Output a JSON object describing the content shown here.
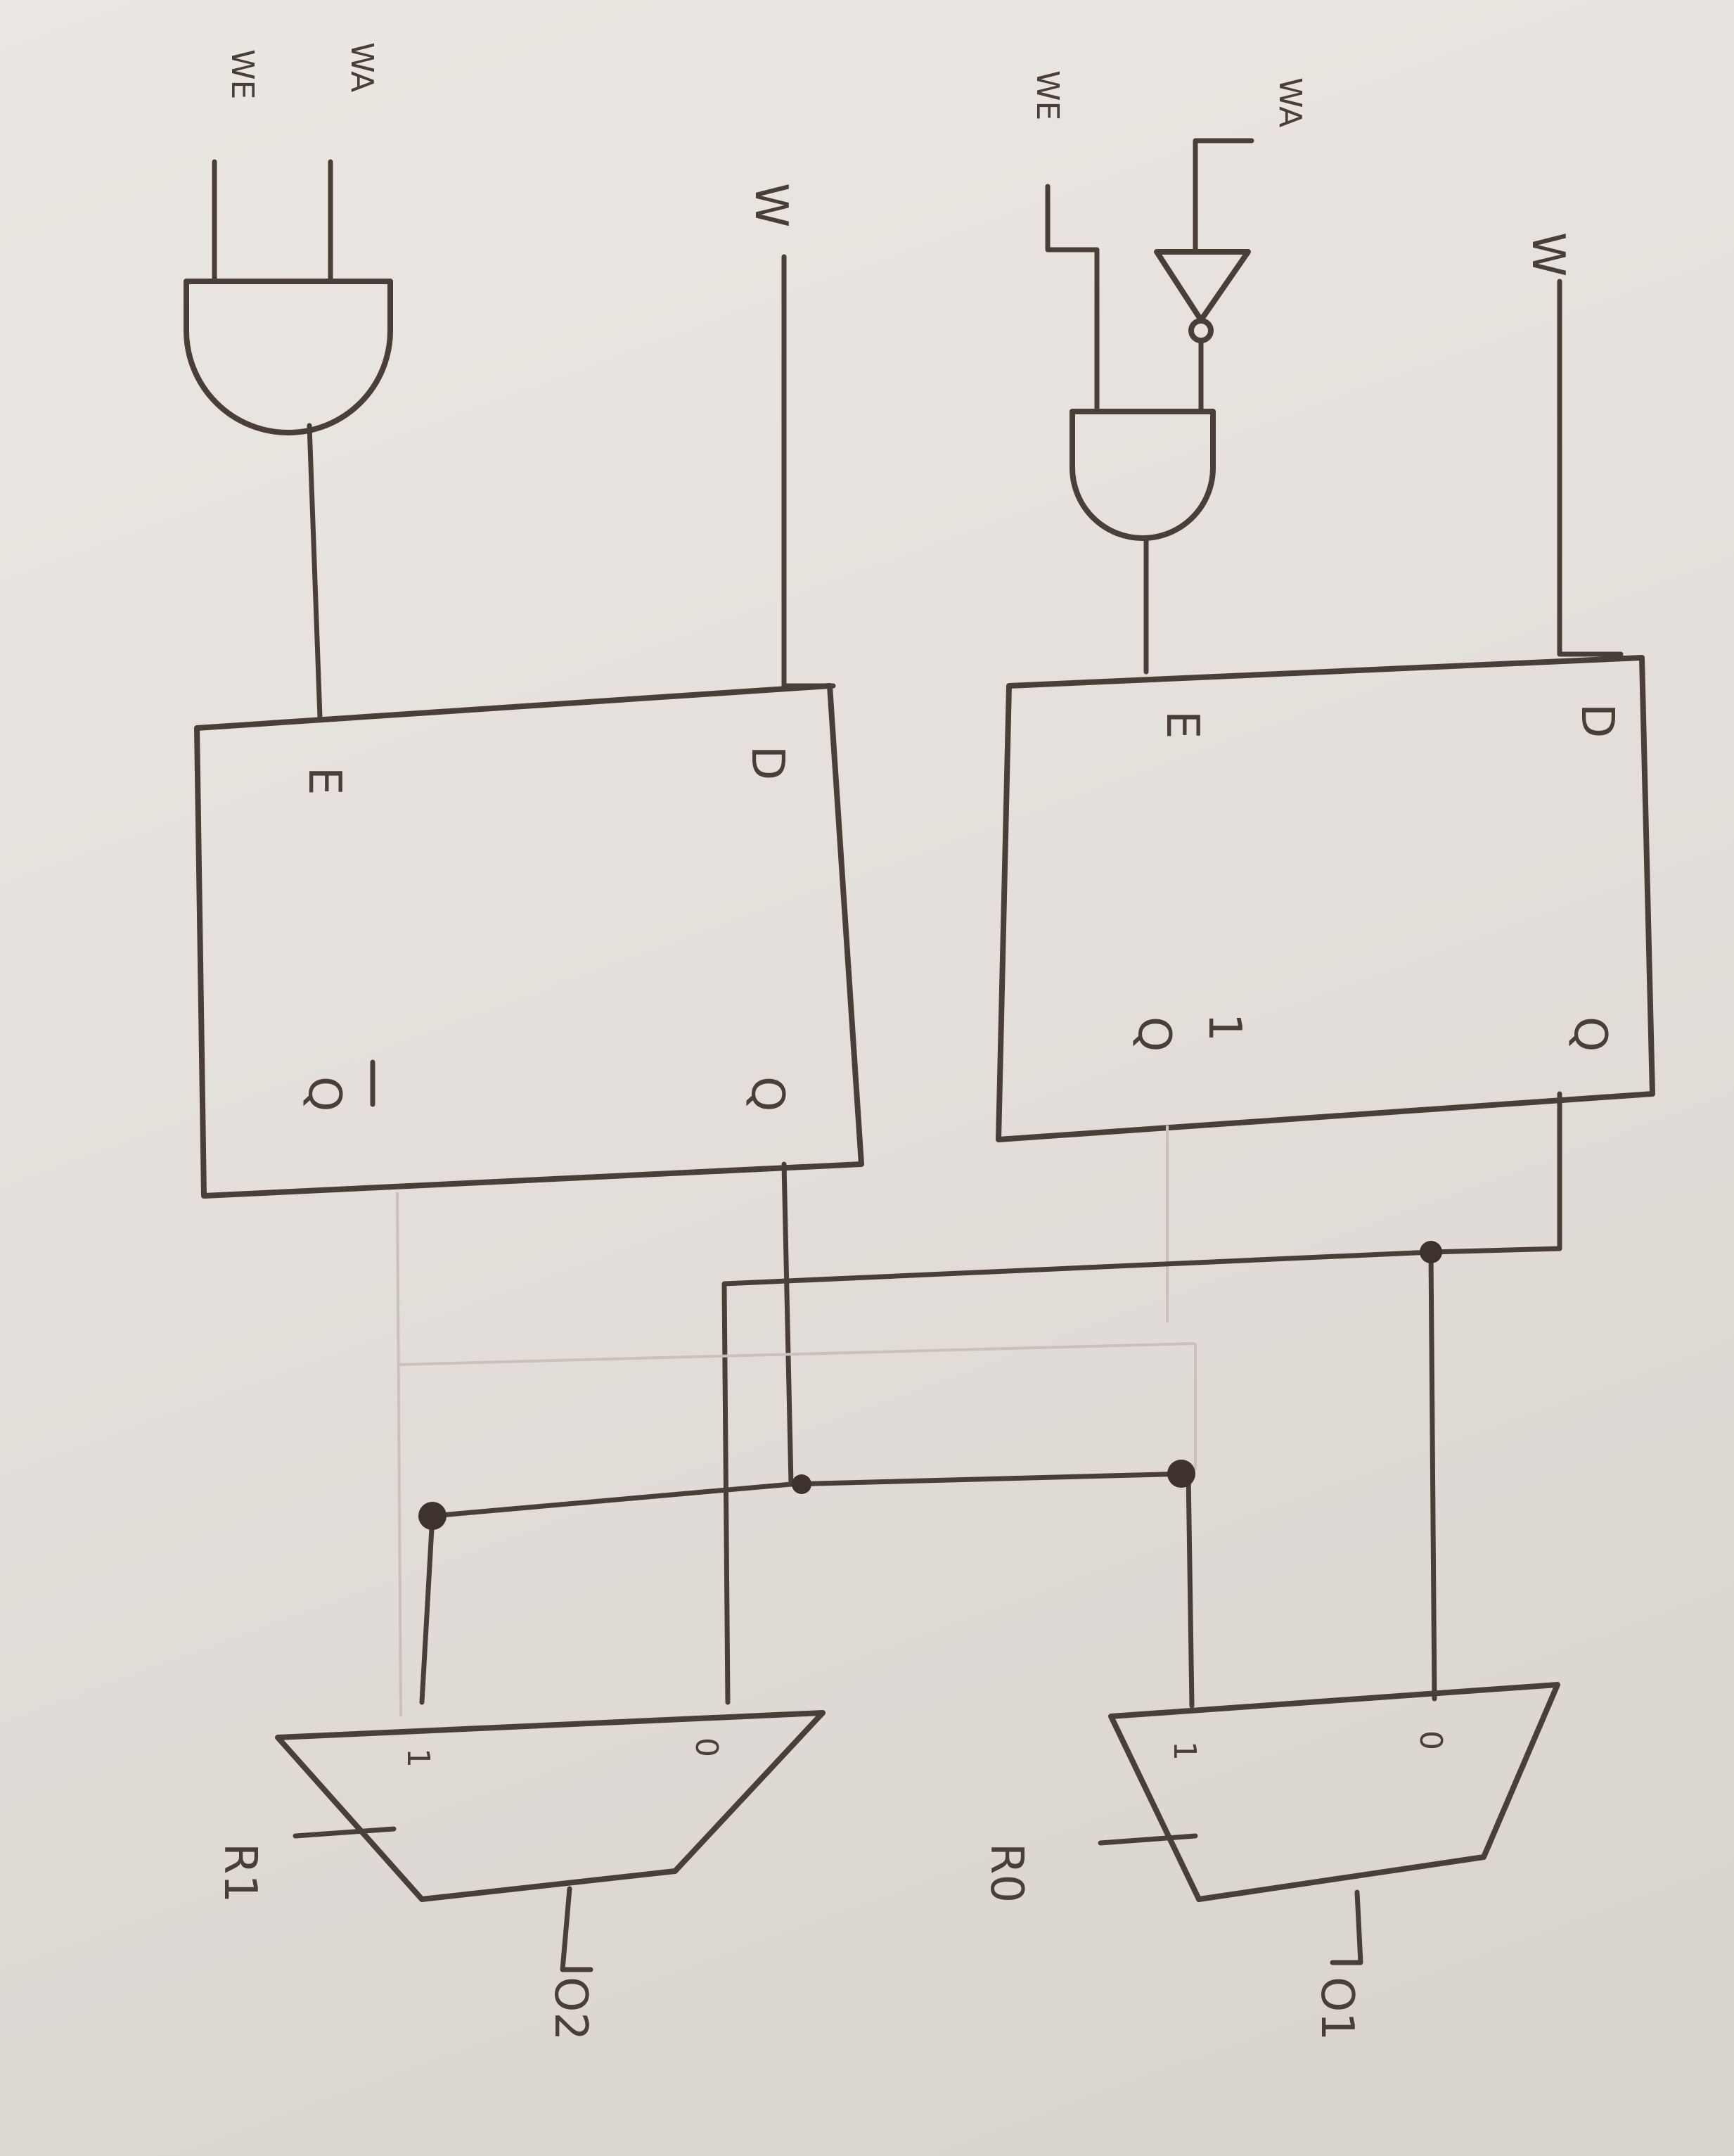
{
  "diagram": {
    "top_register": {
      "inputs": {
        "data": "W",
        "address": "WA",
        "enable": "WE"
      },
      "flipflop": {
        "d": "D",
        "e": "E",
        "q": "Q",
        "qbar": "Q"
      }
    },
    "bottom_register": {
      "inputs": {
        "data": "W",
        "address": "WA",
        "enable": "WE"
      },
      "flipflop": {
        "d": "D",
        "e": "E",
        "q": "Q",
        "qbar": "Q"
      },
      "extra_mark": "1"
    },
    "mux_top": {
      "in0": "0",
      "in1": "1",
      "select": "R0",
      "output": "O1"
    },
    "mux_bottom": {
      "in0": "0",
      "in1": "1",
      "select": "R1",
      "output": "O2"
    }
  }
}
